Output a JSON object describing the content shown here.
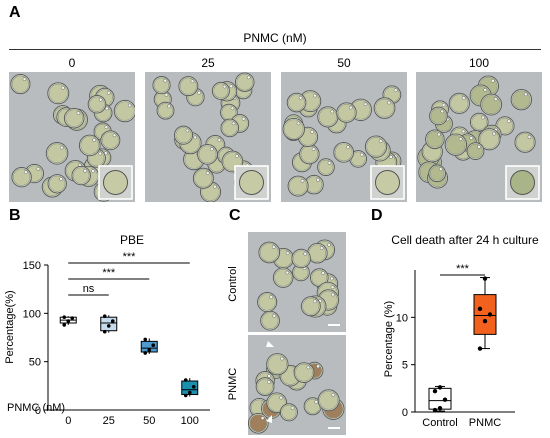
{
  "panels": {
    "A": {
      "letter": "A",
      "header": "PNMC (nM)",
      "concentrations": [
        "0",
        "25",
        "50",
        "100"
      ]
    },
    "B": {
      "letter": "B",
      "title": "PBE",
      "ylabel": "Percentage(%)",
      "xaxis_prefix": "PNMC (nM)",
      "significance": [
        "ns",
        "***",
        "***"
      ]
    },
    "C": {
      "letter": "C",
      "row_labels": [
        "Control",
        "PNMC"
      ]
    },
    "D": {
      "letter": "D",
      "title": "Cell death after 24 h culture",
      "ylabel": "Percentage (%)",
      "significance": "***"
    }
  },
  "chart_data": [
    {
      "type": "box",
      "panel": "B",
      "title": "PBE",
      "xlabel": "PNMC (nM)",
      "ylabel": "Percentage(%)",
      "categories": [
        "0",
        "25",
        "50",
        "100"
      ],
      "ylim": [
        0,
        150
      ],
      "yticks": [
        0,
        50,
        100,
        150
      ],
      "colors": [
        "#ffffff",
        "#c6dcee",
        "#4f9bd0",
        "#1b8fae"
      ],
      "boxes": [
        {
          "min": 88,
          "q1": 90,
          "median": 93,
          "q3": 96,
          "max": 97,
          "points": [
            88,
            92,
            95,
            96
          ]
        },
        {
          "min": 80,
          "q1": 82,
          "median": 90,
          "q3": 96,
          "max": 98,
          "points": [
            81,
            87,
            92,
            97
          ]
        },
        {
          "min": 58,
          "q1": 60,
          "median": 64,
          "q3": 71,
          "max": 74,
          "points": [
            59,
            62,
            67,
            73
          ]
        },
        {
          "min": 14,
          "q1": 16,
          "median": 21,
          "q3": 30,
          "max": 33,
          "points": [
            15,
            18,
            24,
            31
          ]
        }
      ],
      "comparisons": [
        {
          "from": "0",
          "to": "25",
          "label": "ns"
        },
        {
          "from": "0",
          "to": "50",
          "label": "***"
        },
        {
          "from": "0",
          "to": "100",
          "label": "***"
        }
      ]
    },
    {
      "type": "box",
      "panel": "D",
      "title": "Cell death after 24 h culture",
      "ylabel": "Percentage (%)",
      "categories": [
        "Control",
        "PNMC"
      ],
      "ylim": [
        0,
        15
      ],
      "yticks": [
        0,
        5,
        10
      ],
      "colors": [
        "#ffffff",
        "#f2611d"
      ],
      "boxes": [
        {
          "min": 0.1,
          "q1": 0.3,
          "median": 1.2,
          "q3": 2.5,
          "max": 2.7,
          "points": [
            0.2,
            0.4,
            1.3,
            2.2,
            2.6
          ]
        },
        {
          "min": 6.7,
          "q1": 8.2,
          "median": 10.2,
          "q3": 12.4,
          "max": 14.2,
          "points": [
            6.7,
            9.6,
            10.3,
            10.9,
            14.1
          ]
        }
      ],
      "comparisons": [
        {
          "from": "Control",
          "to": "PNMC",
          "label": "***"
        }
      ]
    }
  ]
}
